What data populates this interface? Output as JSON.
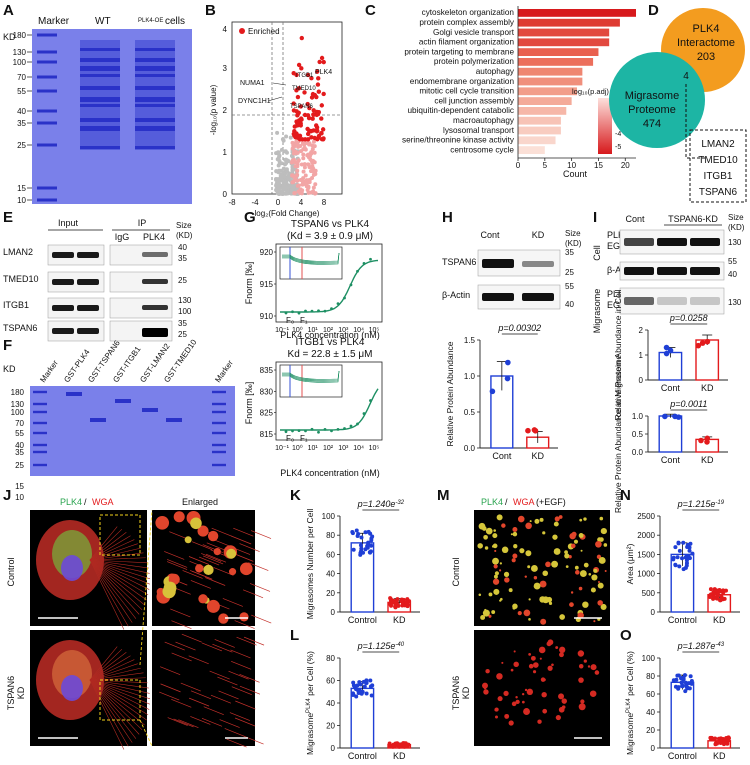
{
  "panels": {
    "A": {
      "letter": "A",
      "marker": "Marker",
      "wt": "WT",
      "oe": "PLK4-OE",
      "oe_suffix": "cells",
      "kd": "KD",
      "ladder": [
        "180",
        "130",
        "100",
        "70",
        "55",
        "40",
        "35",
        "25",
        "15",
        "10"
      ]
    },
    "B": {
      "letter": "B",
      "legend": "Enriched",
      "xlabel": "log₂(Fold Change)",
      "ylabel": "-log₁₀(p value)",
      "xticks": [
        "-8",
        "-4",
        "0",
        "4",
        "8"
      ],
      "yticks": [
        "0",
        "1",
        "2",
        "3",
        "4"
      ],
      "genes": [
        "NUMA1",
        "DYNC1H1",
        "PLK4",
        "ITGB1",
        "TMED10",
        "TSPAN6"
      ]
    },
    "C": {
      "letter": "C",
      "xlabel": "Count",
      "xticks": [
        "0",
        "5",
        "10",
        "15",
        "20"
      ],
      "legend_title": "log₁₀(p.adj)",
      "legend_ticks": [
        "-2",
        "-3",
        "-4",
        "-5"
      ]
    },
    "D": {
      "letter": "D",
      "plk4": "PLK4",
      "interactome": "Interactome",
      "plk4_count": "203",
      "migrasome": "Migrasome",
      "proteome": "Proteome",
      "mig_count": "474",
      "overlap": "4",
      "genes": [
        "LMAN2",
        "TMED10",
        "ITGB1",
        "TSPAN6"
      ]
    },
    "E": {
      "letter": "E",
      "input": "Input",
      "ip": "IP",
      "igg": "IgG",
      "plk4": "PLK4",
      "size": "Size",
      "kd": "(KD)",
      "rows": [
        {
          "name": "LMAN2",
          "sizes": [
            "40",
            "35"
          ]
        },
        {
          "name": "TMED10",
          "sizes": [
            "25"
          ]
        },
        {
          "name": "ITGB1",
          "sizes": [
            "130",
            "100"
          ]
        },
        {
          "name": "TSPAN6",
          "sizes": [
            "35",
            "25"
          ]
        }
      ]
    },
    "F": {
      "letter": "F",
      "kd": "KD",
      "lanes": [
        "Marker",
        "GST-PLK4",
        "GST-TSPAN6",
        "GST-ITGB1",
        "GST-LMAN2",
        "GST-TMED10",
        "Marker"
      ],
      "ladder": [
        "180",
        "130",
        "100",
        "70",
        "55",
        "40",
        "35",
        "25",
        "15",
        "10"
      ]
    },
    "G": {
      "letter": "G",
      "top": {
        "title": "TSPAN6 vs PLK4",
        "kd": "(Kd = 3.9 ± 0.9 μM)",
        "yticks": [
          "920",
          "915",
          "910"
        ]
      },
      "bottom": {
        "title": "ITGB1 vs PLK4",
        "kd": "Kd = 22.8 ± 1.5 μM",
        "yticks": [
          "835",
          "830",
          "825",
          "815"
        ]
      },
      "ylabel": "Fnorm [‰]",
      "xlabel": "PLK4 concentration (nM)",
      "xticks": [
        "10⁻¹",
        "10⁰",
        "10¹",
        "10²",
        "10³",
        "10⁴",
        "10⁵"
      ],
      "f0": "F₀",
      "f1": "F₁"
    },
    "H": {
      "letter": "H",
      "cont": "Cont",
      "kd": "KD",
      "size": "Size",
      "kdu": "(KD)",
      "tspan6": "TSPAN6",
      "actin": "β-Actin",
      "sizes": [
        "35",
        "25",
        "55",
        "40"
      ],
      "pval": "p=0.00302",
      "ylabel": "Relative Protein Abundance",
      "yticks": [
        "0.0",
        "0.5",
        "1.0",
        "1.5"
      ],
      "cats": [
        "Cont",
        "KD"
      ]
    },
    "I": {
      "letter": "I",
      "cont": "Cont",
      "kd": "TSPAN6-KD",
      "size": "Size",
      "kdu": "(KD)",
      "cell": "Cell",
      "migrasome": "Migrasome",
      "plk4egfp": "PLK4-",
      "egfp": "EGFP",
      "actin": "β-Actin",
      "sizes": [
        "130",
        "55",
        "40",
        "130"
      ],
      "p1": "p=0.0258",
      "p2": "p=0.0011",
      "ylabel1": "Relative Protein Abundance in Cell",
      "ylabel2": "Relative Protein Abundance in Migrasome",
      "yticks1": [
        "0",
        "1",
        "2"
      ],
      "yticks2": [
        "0.0",
        "0.5",
        "1.0"
      ],
      "cats": [
        "Cont",
        "KD"
      ]
    },
    "J": {
      "letter": "J",
      "plk4": "PLK4",
      "slash": " / ",
      "wga": "WGA",
      "enlarged": "Enlarged",
      "control": "Control",
      "tspan6": "TSPAN6",
      "kdrow": "KD"
    },
    "K": {
      "letter": "K",
      "pval": "p=1.240e",
      "pexp": "-32",
      "ylabel": "Migrasomes Number per Cell",
      "yticks": [
        "0",
        "20",
        "40",
        "60",
        "80",
        "100"
      ],
      "cats": [
        "Control",
        "KD"
      ]
    },
    "L": {
      "letter": "L",
      "pval": "p=1.125e",
      "pexp": "-40",
      "ylabel": "Migrasome per Cell (%)",
      "ysup": "PLK4",
      "yticks": [
        "0",
        "20",
        "40",
        "60",
        "80"
      ],
      "cats": [
        "Control",
        "KD"
      ]
    },
    "M": {
      "letter": "M",
      "plk4": "PLK4",
      "slash": " / ",
      "wga": "WGA",
      "egf": " (+EGF)",
      "control": "Control",
      "tspan6": "TSPAN6",
      "kdrow": "KD"
    },
    "N": {
      "letter": "N",
      "pval": "p=1.215e",
      "pexp": "-19",
      "ylabel": "Area (μm²)",
      "yticks": [
        "0",
        "500",
        "1000",
        "1500",
        "2000",
        "2500"
      ],
      "cats": [
        "Control",
        "KD"
      ]
    },
    "O": {
      "letter": "O",
      "pval": "p=1.287e",
      "pexp": "-43",
      "ylabel": "Migrasome per Cell (%)",
      "ysup": "PLK4",
      "yticks": [
        "0",
        "20",
        "40",
        "60",
        "80",
        "100"
      ],
      "cats": [
        "Control",
        "KD"
      ]
    }
  },
  "chart_data": [
    {
      "type": "bar",
      "categories": [
        "cytoskeleton organization",
        "protein complex assembly",
        "Golgi vesicle transport",
        "actin filament organization",
        "protein targeting to membrane",
        "protein polymerization",
        "autophagy",
        "endomembrane organization",
        "mitotic cell cycle transition",
        "cell junction assembly",
        "ubiquitin-dependent catabolic",
        "macroautophagy",
        "lysosomal transport",
        "serine/threonine kinase activity",
        "centrosome cycle"
      ],
      "values": [
        22,
        19,
        17,
        17,
        15,
        14,
        12,
        12,
        11,
        10,
        9,
        8,
        8,
        7,
        5
      ],
      "xlabel": "Count",
      "xlim": [
        0,
        22
      ]
    },
    {
      "type": "bar",
      "categories": [
        "Cont",
        "KD"
      ],
      "values": [
        1.0,
        0.15
      ],
      "ylim": [
        0,
        1.5
      ]
    },
    {
      "type": "bar",
      "categories": [
        "Cont",
        "KD"
      ],
      "values": [
        1.1,
        1.6
      ],
      "ylim": [
        0,
        2
      ]
    },
    {
      "type": "bar",
      "categories": [
        "Cont",
        "KD"
      ],
      "values": [
        1.0,
        0.35
      ],
      "ylim": [
        0,
        1.0
      ]
    },
    {
      "type": "bar",
      "categories": [
        "Control",
        "KD"
      ],
      "values": [
        72,
        10
      ],
      "ylim": [
        0,
        100
      ]
    },
    {
      "type": "bar",
      "categories": [
        "Control",
        "KD"
      ],
      "values": [
        53,
        3
      ],
      "ylim": [
        0,
        80
      ]
    },
    {
      "type": "bar",
      "categories": [
        "Control",
        "KD"
      ],
      "values": [
        1500,
        450
      ],
      "ylim": [
        0,
        2500
      ]
    },
    {
      "type": "bar",
      "categories": [
        "Control",
        "KD"
      ],
      "values": [
        73,
        8
      ],
      "ylim": [
        0,
        100
      ]
    }
  ],
  "colors": {
    "gel": "#6f75e6",
    "band": "#2a32c8",
    "teal": "#1db5a4",
    "orange": "#f39c1f",
    "red": "#e31a1c",
    "blue": "#1f3fd6",
    "green": "#2aa44f"
  }
}
